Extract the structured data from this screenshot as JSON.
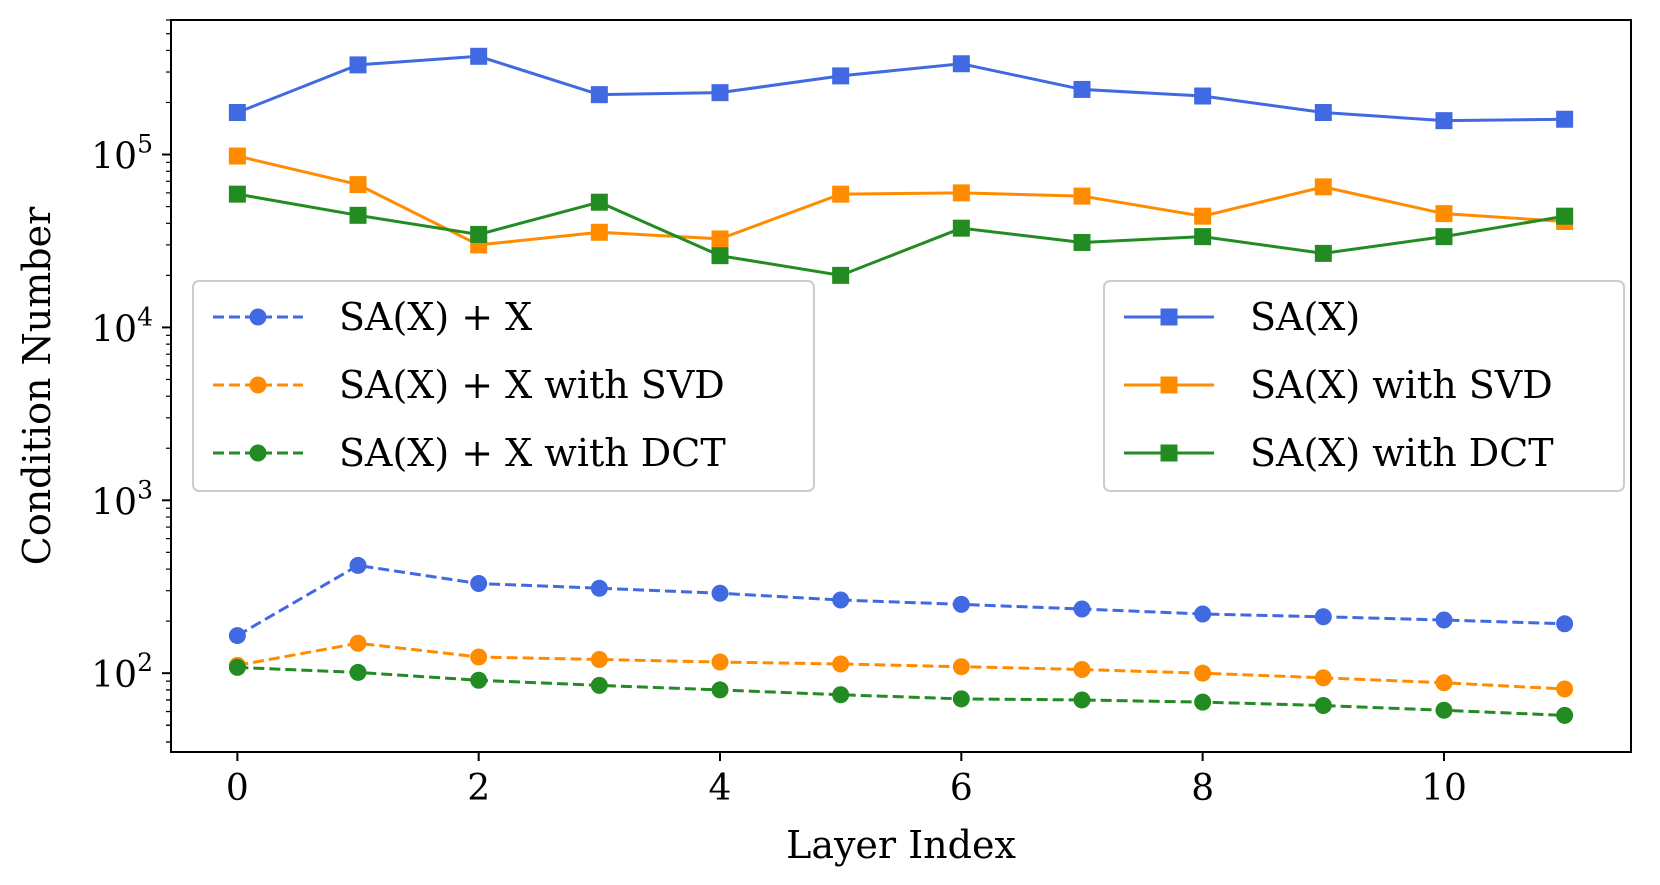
{
  "chart_data": {
    "type": "line",
    "title": "",
    "xlabel": "Layer Index",
    "ylabel": "Condition Number",
    "yscale": "log",
    "xlim": [
      -0.55,
      11.55
    ],
    "ylim": [
      35,
      600000
    ],
    "x": [
      0,
      1,
      2,
      3,
      4,
      5,
      6,
      7,
      8,
      9,
      10,
      11
    ],
    "xticks": [
      0,
      2,
      4,
      6,
      8,
      10
    ],
    "xtick_labels": [
      "0",
      "2",
      "4",
      "6",
      "8",
      "10"
    ],
    "yticks": [
      {
        "value": 100,
        "base": "10",
        "exp": "2"
      },
      {
        "value": 1000,
        "base": "10",
        "exp": "3"
      },
      {
        "value": 10000,
        "base": "10",
        "exp": "4"
      },
      {
        "value": 100000,
        "base": "10",
        "exp": "5"
      }
    ],
    "series": [
      {
        "name": "SA(X)",
        "color": "#4169e1",
        "marker": "square",
        "linestyle": "solid",
        "values": [
          175000,
          330000,
          370000,
          222000,
          228000,
          285000,
          335000,
          238000,
          218000,
          175000,
          157000,
          160000
        ]
      },
      {
        "name": "SA(X) with SVD",
        "color": "#ff8c00",
        "marker": "square",
        "linestyle": "solid",
        "values": [
          98000,
          67000,
          30000,
          35500,
          32500,
          59000,
          60000,
          57500,
          44000,
          65000,
          45500,
          41000
        ]
      },
      {
        "name": "SA(X) with DCT",
        "color": "#228b22",
        "marker": "square",
        "linestyle": "solid",
        "values": [
          59000,
          44500,
          34500,
          53000,
          26000,
          20000,
          37500,
          31000,
          33500,
          26800,
          33500,
          44000
        ]
      },
      {
        "name": "SA(X) + X",
        "color": "#4169e1",
        "marker": "circle",
        "linestyle": "dashed",
        "values": [
          165,
          420,
          330,
          310,
          290,
          265,
          250,
          235,
          220,
          212,
          203,
          193
        ]
      },
      {
        "name": "SA(X) + X with SVD",
        "color": "#ff8c00",
        "marker": "circle",
        "linestyle": "dashed",
        "values": [
          111,
          149,
          124,
          120,
          116,
          113,
          109,
          105,
          100,
          94,
          88,
          81
        ]
      },
      {
        "name": "SA(X) + X with DCT",
        "color": "#228b22",
        "marker": "circle",
        "linestyle": "dashed",
        "values": [
          108,
          101,
          91,
          85,
          80,
          75,
          71,
          70,
          68,
          65,
          61,
          57
        ]
      }
    ],
    "legends": [
      {
        "placement": "center-left",
        "entries": [
          "SA(X) + X",
          "SA(X) + X with SVD",
          "SA(X) + X with DCT"
        ]
      },
      {
        "placement": "center-right",
        "entries": [
          "SA(X)",
          "SA(X) with SVD",
          "SA(X) with DCT"
        ]
      }
    ]
  }
}
